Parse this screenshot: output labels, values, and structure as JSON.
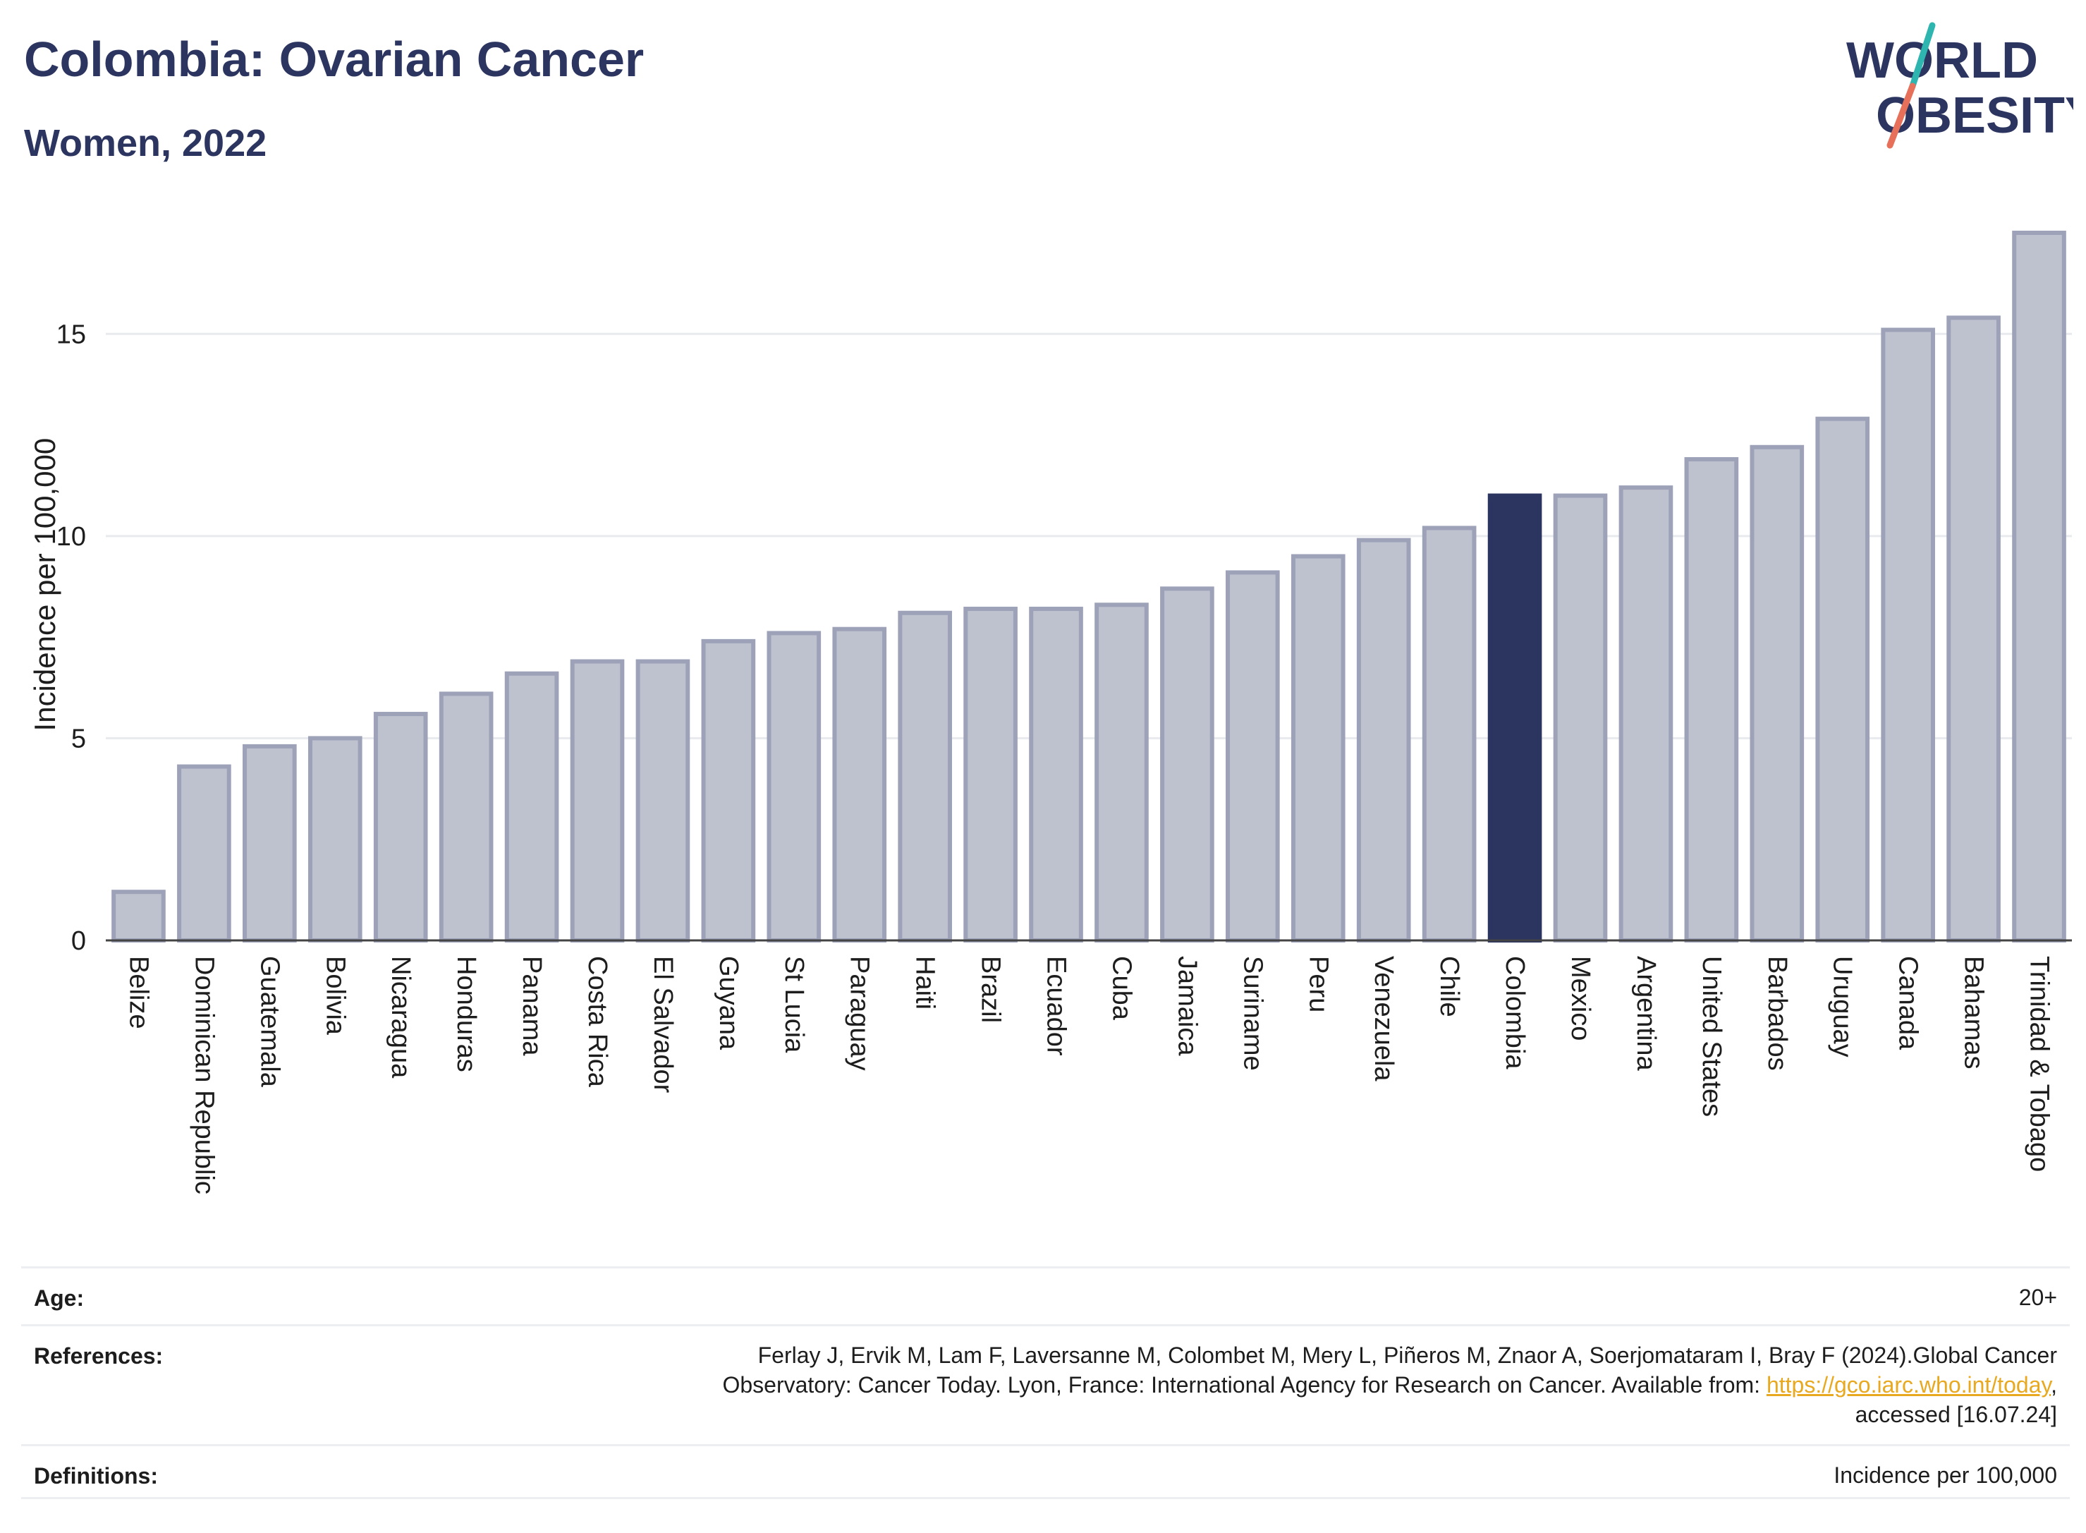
{
  "header": {
    "title": "Colombia: Ovarian Cancer",
    "subtitle": "Women, 2022"
  },
  "logo": {
    "line1": "WORLD",
    "line2": "OBESITY"
  },
  "colors": {
    "bar": "#bec1ce",
    "bar_stroke": "#9da2b8",
    "highlight": "#2b3560",
    "title": "#2b3560",
    "link": "#e8a921",
    "logo_teal": "#2fb5b0",
    "logo_coral": "#e6705a"
  },
  "chart_data": {
    "type": "bar",
    "categories": [
      "Belize",
      "Dominican Republic",
      "Guatemala",
      "Bolivia",
      "Nicaragua",
      "Honduras",
      "Panama",
      "Costa Rica",
      "El Salvador",
      "Guyana",
      "St Lucia",
      "Paraguay",
      "Haiti",
      "Brazil",
      "Ecuador",
      "Cuba",
      "Jamaica",
      "Suriname",
      "Peru",
      "Venezuela",
      "Chile",
      "Colombia",
      "Mexico",
      "Argentina",
      "United States",
      "Barbados",
      "Uruguay",
      "Canada",
      "Bahamas",
      "Trinidad & Tobago"
    ],
    "values": [
      1.2,
      4.3,
      4.8,
      5.0,
      5.6,
      6.1,
      6.6,
      6.9,
      6.9,
      7.4,
      7.6,
      7.7,
      8.1,
      8.2,
      8.2,
      8.3,
      8.7,
      9.1,
      9.5,
      9.9,
      10.2,
      11.0,
      11.0,
      11.2,
      11.9,
      12.2,
      12.9,
      15.1,
      15.4,
      17.5
    ],
    "highlight": "Colombia",
    "ylabel": "Incidence per 100,000",
    "xlabel": "",
    "yticks": [
      0,
      5,
      10,
      15
    ],
    "ylim": [
      0,
      17.6
    ],
    "grid": true
  },
  "meta": {
    "age_label": "Age:",
    "age_value": "20+",
    "references_label": "References:",
    "references_line1": "Ferlay J, Ervik M, Lam F, Laversanne M, Colombet M, Mery L, Piñeros M, Znaor A, Soerjomataram I, Bray F (2024).Global Cancer",
    "references_line2_pre": "Observatory: Cancer Today. Lyon, France: International Agency for Research on Cancer. Available from: ",
    "references_link": "https://gco.iarc.who.int/today",
    "references_line2_post": ",",
    "references_line3": "accessed [16.07.24]",
    "definitions_label": "Definitions:",
    "definitions_value": "Incidence per 100,000"
  }
}
